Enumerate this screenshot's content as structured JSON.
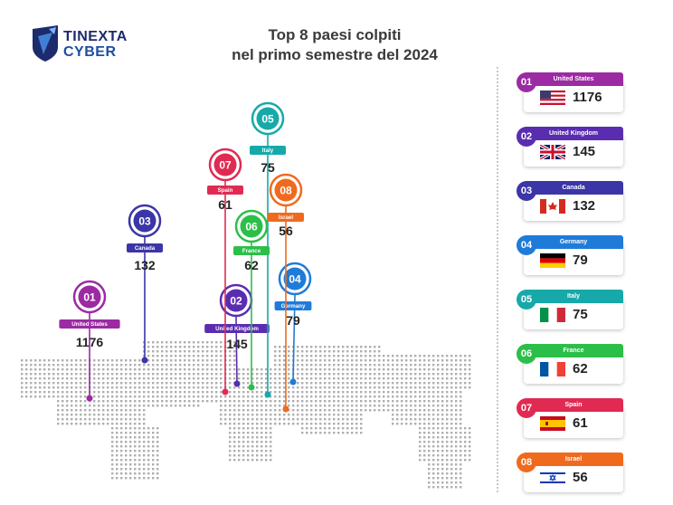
{
  "brand": {
    "line1": "TINEXTA",
    "line2": "CYBER"
  },
  "title": {
    "line1": "Top 8 paesi colpiti",
    "line2": "nel primo semestre del 2024"
  },
  "colors": {
    "us": "#9b2aa3",
    "uk": "#5a2db0",
    "ca": "#3b35a8",
    "de": "#1f7bd8",
    "it": "#17a9a9",
    "fr": "#2bbf4a",
    "es": "#e02a52",
    "il": "#f06a1e"
  },
  "chart_data": {
    "type": "bar",
    "title": "Top 8 paesi colpiti nel primo semestre del 2024",
    "categories": [
      "United States",
      "United Kingdom",
      "Canada",
      "Germany",
      "Italy",
      "France",
      "Spain",
      "Israel"
    ],
    "values": [
      1176,
      145,
      132,
      79,
      75,
      62,
      61,
      56
    ],
    "ranks": [
      "01",
      "02",
      "03",
      "04",
      "05",
      "06",
      "07",
      "08"
    ],
    "flag_icons": [
      "us-flag-icon",
      "uk-flag-icon",
      "canada-flag-icon",
      "germany-flag-icon",
      "italy-flag-icon",
      "france-flag-icon",
      "spain-flag-icon",
      "israel-flag-icon"
    ]
  }
}
